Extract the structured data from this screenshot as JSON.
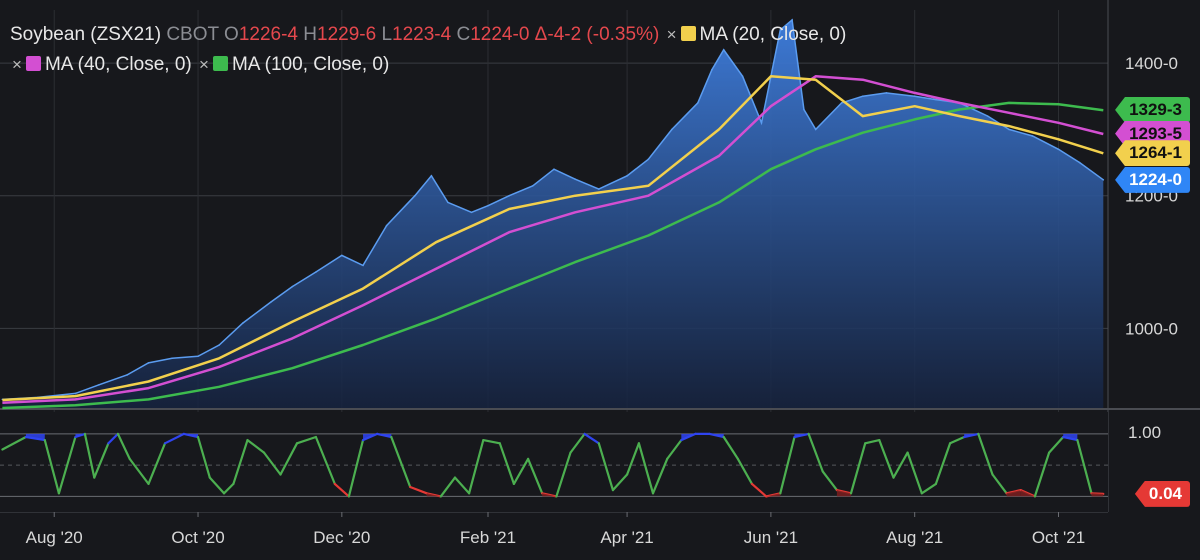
{
  "legend": {
    "symbol": "Soybean (ZSX21)",
    "exchange": "CBOT",
    "o_label": "O",
    "o_value": "1226-4",
    "h_label": "H",
    "h_value": "1229-6",
    "l_label": "L",
    "l_value": "1223-4",
    "c_label": "C",
    "c_value": "1224-0",
    "change": "Δ-4-2 (-0.35%)",
    "ma20": "MA (20, Close, 0)",
    "ma40": "MA (40, Close, 0)",
    "ma100": "MA (100, Close, 0)",
    "close_symbol": "×"
  },
  "colors": {
    "background": "#17181c",
    "price": "#5b9cf0",
    "ma20": "#f2d04d",
    "ma40": "#d34fd2",
    "ma100": "#3dbb4e",
    "osc_green": "#4caf50",
    "osc_red": "#e53935",
    "osc_blue": "#2f44f0",
    "up_red": "#e5484d"
  },
  "price_tags": [
    {
      "label": "1329-3",
      "color": "#3dbb4e",
      "value": 1329.375
    },
    {
      "label": "1293-5",
      "color": "#d34fd2",
      "value": 1293.625
    },
    {
      "label": "1264-1",
      "color": "#f2d04d",
      "value": 1264.125
    },
    {
      "label": "1224-0",
      "color": "#2f86f6",
      "value": 1224.0
    }
  ],
  "osc_tag": {
    "label": "0.04",
    "color": "#e53935",
    "value": 0.04
  },
  "chart_data": [
    {
      "type": "area",
      "title": "Soybean (ZSX21)",
      "ylim": [
        880,
        1480
      ],
      "y_ticks": [
        "1400-0",
        "1200-0",
        "1000-0"
      ],
      "y_tick_values": [
        1400,
        1200,
        1000
      ],
      "x_ticks": [
        "Aug '20",
        "Oct '20",
        "Dec '20",
        "Feb '21",
        "Apr '21",
        "Jun '21",
        "Aug '21",
        "Oct '21"
      ],
      "x_tick_dates": [
        "2020-08-01",
        "2020-10-01",
        "2020-12-01",
        "2021-02-01",
        "2021-04-01",
        "2021-06-01",
        "2021-08-01",
        "2021-10-01"
      ],
      "x_range": [
        "2020-07-09",
        "2021-10-22"
      ],
      "series": [
        {
          "name": "Soybean (ZSX21)",
          "x": [
            "2020-07-10",
            "2020-07-25",
            "2020-08-10",
            "2020-08-20",
            "2020-09-01",
            "2020-09-10",
            "2020-09-20",
            "2020-10-01",
            "2020-10-10",
            "2020-10-20",
            "2020-11-01",
            "2020-11-10",
            "2020-11-20",
            "2020-12-01",
            "2020-12-10",
            "2020-12-20",
            "2021-01-01",
            "2021-01-08",
            "2021-01-15",
            "2021-01-25",
            "2021-02-01",
            "2021-02-10",
            "2021-02-20",
            "2021-03-01",
            "2021-03-10",
            "2021-03-20",
            "2021-04-01",
            "2021-04-10",
            "2021-04-20",
            "2021-05-01",
            "2021-05-07",
            "2021-05-12",
            "2021-05-20",
            "2021-05-28",
            "2021-06-05",
            "2021-06-10",
            "2021-06-15",
            "2021-06-20",
            "2021-07-01",
            "2021-07-10",
            "2021-07-20",
            "2021-08-01",
            "2021-08-10",
            "2021-08-20",
            "2021-09-01",
            "2021-09-10",
            "2021-09-20",
            "2021-10-01",
            "2021-10-10",
            "2021-10-20"
          ],
          "values": [
            893,
            896,
            902,
            915,
            930,
            948,
            955,
            958,
            975,
            1008,
            1040,
            1063,
            1085,
            1110,
            1095,
            1155,
            1200,
            1230,
            1190,
            1175,
            1185,
            1200,
            1215,
            1240,
            1225,
            1210,
            1230,
            1255,
            1300,
            1340,
            1390,
            1420,
            1380,
            1310,
            1450,
            1465,
            1330,
            1300,
            1340,
            1350,
            1355,
            1350,
            1345,
            1340,
            1320,
            1300,
            1290,
            1270,
            1250,
            1224
          ]
        },
        {
          "name": "MA (20, Close, 0)",
          "x": [
            "2020-07-10",
            "2020-08-10",
            "2020-09-10",
            "2020-10-10",
            "2020-11-10",
            "2020-12-10",
            "2021-01-10",
            "2021-02-10",
            "2021-03-10",
            "2021-04-10",
            "2021-05-10",
            "2021-06-01",
            "2021-06-20",
            "2021-07-10",
            "2021-08-01",
            "2021-08-20",
            "2021-09-10",
            "2021-10-01",
            "2021-10-20"
          ],
          "values": [
            892,
            898,
            920,
            955,
            1010,
            1060,
            1130,
            1180,
            1200,
            1215,
            1300,
            1380,
            1375,
            1320,
            1335,
            1320,
            1305,
            1285,
            1264
          ]
        },
        {
          "name": "MA (40, Close, 0)",
          "x": [
            "2020-07-10",
            "2020-08-10",
            "2020-09-10",
            "2020-10-10",
            "2020-11-10",
            "2020-12-10",
            "2021-01-10",
            "2021-02-10",
            "2021-03-10",
            "2021-04-10",
            "2021-05-10",
            "2021-06-01",
            "2021-06-20",
            "2021-07-10",
            "2021-08-01",
            "2021-08-20",
            "2021-09-10",
            "2021-10-01",
            "2021-10-20"
          ],
          "values": [
            888,
            893,
            910,
            942,
            985,
            1035,
            1090,
            1145,
            1175,
            1200,
            1260,
            1335,
            1380,
            1375,
            1355,
            1340,
            1325,
            1310,
            1293
          ]
        },
        {
          "name": "MA (100, Close, 0)",
          "x": [
            "2020-07-10",
            "2020-08-10",
            "2020-09-10",
            "2020-10-10",
            "2020-11-10",
            "2020-12-10",
            "2021-01-10",
            "2021-02-10",
            "2021-03-10",
            "2021-04-10",
            "2021-05-10",
            "2021-06-01",
            "2021-06-20",
            "2021-07-10",
            "2021-08-01",
            "2021-08-20",
            "2021-09-10",
            "2021-10-01",
            "2021-10-20"
          ],
          "values": [
            880,
            884,
            893,
            912,
            940,
            975,
            1015,
            1060,
            1100,
            1140,
            1190,
            1240,
            1270,
            1295,
            1315,
            1330,
            1340,
            1338,
            1329
          ]
        }
      ]
    },
    {
      "type": "line",
      "y_ticks": [
        "1.00"
      ],
      "y_tick_values": [
        1.0
      ],
      "ylim": [
        -0.25,
        1.35
      ],
      "x_range": [
        "2020-07-09",
        "2021-10-22"
      ],
      "thresholds": {
        "upper": 0.9,
        "lower": 0.1
      },
      "series": [
        {
          "name": "Oscillator",
          "x": [
            "2020-07-10",
            "2020-07-20",
            "2020-07-28",
            "2020-08-03",
            "2020-08-10",
            "2020-08-14",
            "2020-08-18",
            "2020-08-24",
            "2020-08-28",
            "2020-09-02",
            "2020-09-10",
            "2020-09-17",
            "2020-09-25",
            "2020-10-01",
            "2020-10-06",
            "2020-10-12",
            "2020-10-16",
            "2020-10-22",
            "2020-10-29",
            "2020-11-05",
            "2020-11-12",
            "2020-11-20",
            "2020-11-28",
            "2020-12-04",
            "2020-12-10",
            "2020-12-16",
            "2020-12-22",
            "2020-12-30",
            "2021-01-06",
            "2021-01-12",
            "2021-01-18",
            "2021-01-24",
            "2021-01-30",
            "2021-02-06",
            "2021-02-12",
            "2021-02-18",
            "2021-02-24",
            "2021-03-02",
            "2021-03-08",
            "2021-03-14",
            "2021-03-20",
            "2021-03-26",
            "2021-04-01",
            "2021-04-06",
            "2021-04-12",
            "2021-04-18",
            "2021-04-24",
            "2021-04-30",
            "2021-05-06",
            "2021-05-12",
            "2021-05-18",
            "2021-05-24",
            "2021-05-30",
            "2021-06-05",
            "2021-06-11",
            "2021-06-17",
            "2021-06-23",
            "2021-06-29",
            "2021-07-05",
            "2021-07-11",
            "2021-07-17",
            "2021-07-23",
            "2021-07-29",
            "2021-08-04",
            "2021-08-10",
            "2021-08-16",
            "2021-08-22",
            "2021-08-28",
            "2021-09-03",
            "2021-09-09",
            "2021-09-15",
            "2021-09-21",
            "2021-09-27",
            "2021-10-03",
            "2021-10-09",
            "2021-10-15",
            "2021-10-20"
          ],
          "values": [
            0.75,
            0.95,
            0.9,
            0.05,
            0.95,
            1.0,
            0.3,
            0.85,
            1.0,
            0.6,
            0.2,
            0.85,
            1.0,
            0.95,
            0.3,
            0.05,
            0.2,
            0.9,
            0.7,
            0.35,
            0.85,
            0.95,
            0.2,
            0.0,
            0.9,
            1.0,
            0.95,
            0.15,
            0.05,
            0.0,
            0.3,
            0.05,
            0.9,
            0.85,
            0.2,
            0.6,
            0.05,
            0.0,
            0.7,
            1.0,
            0.85,
            0.1,
            0.35,
            0.85,
            0.05,
            0.6,
            0.9,
            1.0,
            1.0,
            0.95,
            0.6,
            0.2,
            0.0,
            0.05,
            0.95,
            1.0,
            0.4,
            0.1,
            0.05,
            0.85,
            0.9,
            0.3,
            0.7,
            0.05,
            0.2,
            0.85,
            0.95,
            1.0,
            0.35,
            0.05,
            0.1,
            0.0,
            0.7,
            0.95,
            0.9,
            0.05,
            0.04
          ]
        }
      ]
    }
  ]
}
